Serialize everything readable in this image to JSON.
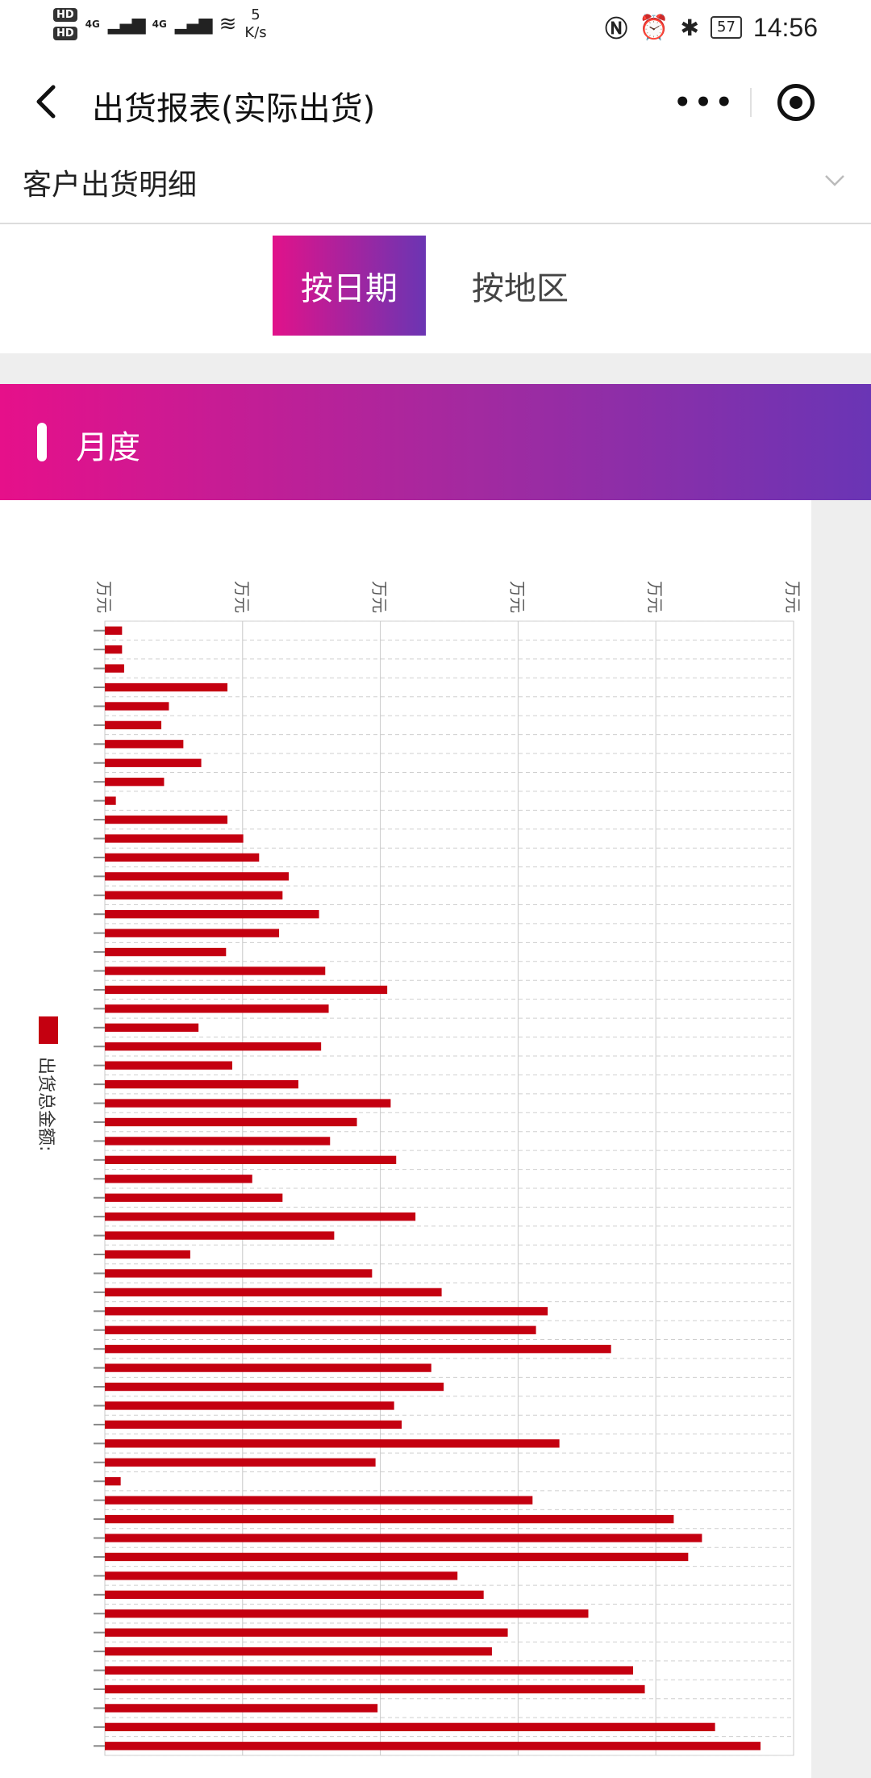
{
  "status_bar": {
    "hd1": "HD",
    "hd2": "HD",
    "net1": "4G",
    "net2": "4G",
    "speed_value": "5",
    "speed_unit": "K/s",
    "battery": "57",
    "time": "14:56"
  },
  "navbar": {
    "title": "出货报表(实际出货)",
    "more_label": "•••"
  },
  "selector": {
    "value": "客户出货明细"
  },
  "tabs": [
    {
      "label": "按日期",
      "active": true
    },
    {
      "label": "按地区",
      "active": false
    }
  ],
  "section": {
    "title": "月度"
  },
  "colors": {
    "accent_start": "#e1128a",
    "accent_end": "#6b35b3",
    "bar": "#c40010"
  },
  "chart_data": {
    "type": "bar",
    "orientation": "horizontal",
    "legend": "出货总金额:",
    "legend_position": "left",
    "x_tick_labels": [
      "万元",
      "万元",
      "万元",
      "万元",
      "万元",
      "万元"
    ],
    "grid": true,
    "xlim": [
      0,
      100
    ],
    "values": [
      2.5,
      2.5,
      2.8,
      17.8,
      9.3,
      8.2,
      11.4,
      14.0,
      8.6,
      1.6,
      17.8,
      20.1,
      22.4,
      26.7,
      25.8,
      31.1,
      25.3,
      17.6,
      32.0,
      41.0,
      32.5,
      13.6,
      31.4,
      18.5,
      28.1,
      41.5,
      36.6,
      32.7,
      42.3,
      21.4,
      25.8,
      45.1,
      33.3,
      12.4,
      38.8,
      48.9,
      64.3,
      62.6,
      73.5,
      47.4,
      49.2,
      42.0,
      43.1,
      66.0,
      39.3,
      2.3,
      62.1,
      82.6,
      86.7,
      84.7,
      51.2,
      55.0,
      70.2,
      58.5,
      56.2,
      76.7,
      78.4,
      39.6,
      88.6,
      95.2
    ]
  }
}
